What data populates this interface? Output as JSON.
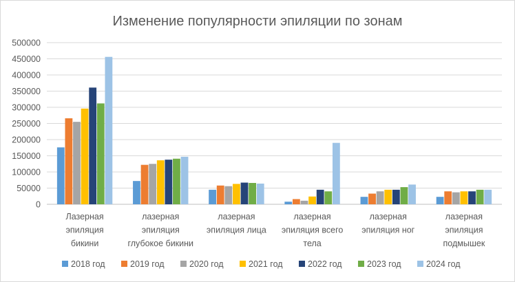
{
  "chart_data": {
    "type": "bar",
    "title": "Изменение популярности эпиляции по зонам",
    "xlabel": "",
    "ylabel": "",
    "ylim": [
      0,
      500000
    ],
    "yticks": [
      "0",
      "50000",
      "100000",
      "150000",
      "200000",
      "250000",
      "300000",
      "350000",
      "400000",
      "450000",
      "500000"
    ],
    "grid": true,
    "legend": "bottom",
    "categories": [
      [
        "Лазерная",
        "эпиляция",
        "бикини"
      ],
      [
        "лазерная",
        "эпиляция",
        "глубокое бикини"
      ],
      [
        "лазерная",
        "эпиляция лица"
      ],
      [
        "лазерная",
        "эпиляция всего",
        "тела"
      ],
      [
        "лазерная",
        "эпиляция ног"
      ],
      [
        "лазерная",
        "эпиляция",
        "подмышек"
      ]
    ],
    "series": [
      {
        "name": "2018 год",
        "color": "#5b9bd5",
        "values": [
          176000,
          72000,
          45000,
          8000,
          23000,
          23000
        ]
      },
      {
        "name": "2019 год",
        "color": "#ed7d31",
        "values": [
          266000,
          122000,
          58000,
          16000,
          33000,
          40000
        ]
      },
      {
        "name": "2020 год",
        "color": "#a5a5a5",
        "values": [
          255000,
          125000,
          56000,
          11000,
          40000,
          37000
        ]
      },
      {
        "name": "2021 год",
        "color": "#ffc000",
        "values": [
          296000,
          136000,
          63000,
          24000,
          45000,
          40000
        ]
      },
      {
        "name": "2022 год",
        "color": "#264478",
        "values": [
          361000,
          138000,
          67000,
          45000,
          45000,
          40000
        ]
      },
      {
        "name": "2023 год",
        "color": "#70ad47",
        "values": [
          312000,
          141000,
          66000,
          40000,
          53000,
          45000
        ]
      },
      {
        "name": "2024 год",
        "color": "#9dc3e6",
        "values": [
          456000,
          147000,
          64000,
          190000,
          61000,
          45000
        ]
      }
    ]
  }
}
